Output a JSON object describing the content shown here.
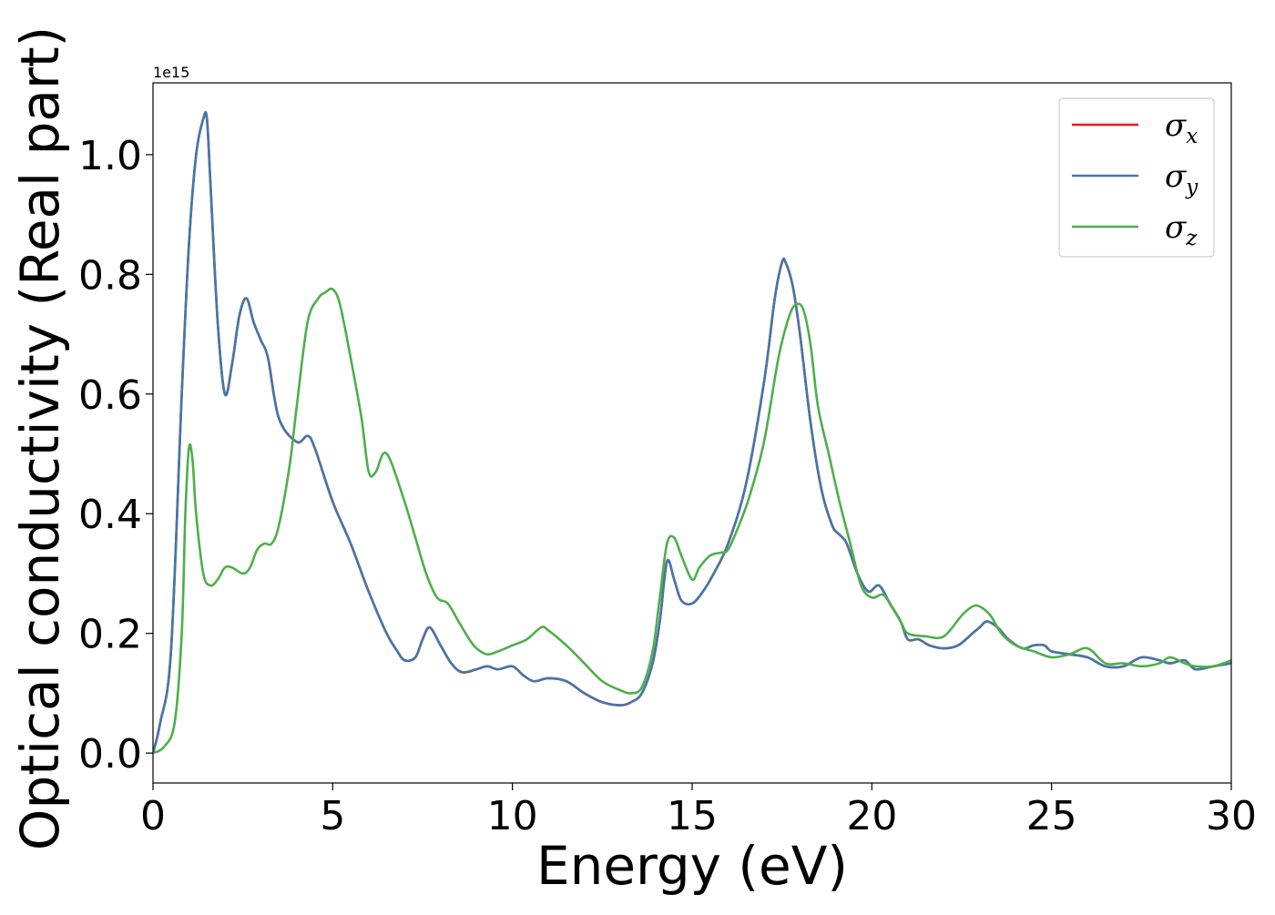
{
  "chart_data": {
    "type": "line",
    "xlabel": "Energy (eV)",
    "ylabel": "Optical conductivity (Real part)",
    "offset_text": "1e15",
    "xlim": [
      0,
      30
    ],
    "ylim": [
      -0.05,
      1.12
    ],
    "xticks": [
      0,
      5,
      10,
      15,
      20,
      25,
      30
    ],
    "xtick_labels": [
      "0",
      "5",
      "10",
      "15",
      "20",
      "25",
      "30"
    ],
    "yticks": [
      0.0,
      0.2,
      0.4,
      0.6,
      0.8,
      1.0
    ],
    "ytick_labels": [
      "0.0",
      "0.2",
      "0.4",
      "0.6",
      "0.8",
      "1.0"
    ],
    "grid": false,
    "legend_position": "upper-right",
    "series": [
      {
        "name": "σx",
        "symbol": "σ",
        "sub": "x",
        "color": "#e41a1c",
        "x": [
          0,
          0.2,
          0.5,
          0.8,
          1.0,
          1.2,
          1.4,
          1.5,
          1.6,
          1.8,
          2.0,
          2.2,
          2.4,
          2.6,
          2.8,
          3.0,
          3.2,
          3.5,
          4.0,
          4.3,
          4.5,
          5.0,
          5.5,
          6.0,
          6.5,
          6.8,
          7.0,
          7.3,
          7.5,
          7.7,
          8.0,
          8.3,
          8.6,
          9.0,
          9.3,
          9.6,
          10.0,
          10.3,
          10.6,
          11.0,
          11.5,
          12.0,
          12.5,
          13.0,
          13.3,
          13.6,
          13.9,
          14.1,
          14.3,
          14.5,
          14.7,
          15.0,
          15.3,
          15.6,
          16.0,
          16.5,
          17.0,
          17.3,
          17.5,
          17.6,
          17.8,
          18.0,
          18.3,
          18.6,
          18.9,
          19.1,
          19.3,
          19.6,
          19.9,
          20.2,
          20.5,
          20.8,
          21.0,
          21.3,
          21.6,
          22.0,
          22.4,
          22.8,
          23.0,
          23.2,
          23.5,
          23.8,
          24.2,
          24.5,
          24.8,
          25.0,
          25.5,
          26.0,
          26.5,
          27.0,
          27.5,
          28.0,
          28.3,
          28.7,
          29.0,
          29.5,
          30.0
        ],
        "y": [
          0.0,
          0.05,
          0.17,
          0.6,
          0.85,
          1.0,
          1.06,
          1.06,
          0.95,
          0.72,
          0.6,
          0.65,
          0.73,
          0.76,
          0.72,
          0.69,
          0.66,
          0.56,
          0.52,
          0.53,
          0.51,
          0.42,
          0.35,
          0.27,
          0.2,
          0.17,
          0.155,
          0.16,
          0.19,
          0.21,
          0.18,
          0.15,
          0.135,
          0.14,
          0.145,
          0.14,
          0.145,
          0.13,
          0.12,
          0.125,
          0.12,
          0.1,
          0.085,
          0.08,
          0.085,
          0.1,
          0.15,
          0.22,
          0.32,
          0.29,
          0.255,
          0.25,
          0.27,
          0.3,
          0.35,
          0.45,
          0.62,
          0.76,
          0.82,
          0.82,
          0.78,
          0.7,
          0.55,
          0.44,
          0.38,
          0.365,
          0.35,
          0.3,
          0.27,
          0.28,
          0.25,
          0.22,
          0.19,
          0.19,
          0.18,
          0.175,
          0.18,
          0.2,
          0.21,
          0.22,
          0.21,
          0.19,
          0.175,
          0.18,
          0.18,
          0.17,
          0.165,
          0.16,
          0.145,
          0.145,
          0.16,
          0.155,
          0.15,
          0.155,
          0.14,
          0.145,
          0.15
        ]
      },
      {
        "name": "σy",
        "symbol": "σ",
        "sub": "y",
        "color": "#4477aa",
        "x": [
          0,
          0.2,
          0.5,
          0.8,
          1.0,
          1.2,
          1.4,
          1.5,
          1.6,
          1.8,
          2.0,
          2.2,
          2.4,
          2.6,
          2.8,
          3.0,
          3.2,
          3.5,
          4.0,
          4.3,
          4.5,
          5.0,
          5.5,
          6.0,
          6.5,
          6.8,
          7.0,
          7.3,
          7.5,
          7.7,
          8.0,
          8.3,
          8.6,
          9.0,
          9.3,
          9.6,
          10.0,
          10.3,
          10.6,
          11.0,
          11.5,
          12.0,
          12.5,
          13.0,
          13.3,
          13.6,
          13.9,
          14.1,
          14.3,
          14.5,
          14.7,
          15.0,
          15.3,
          15.6,
          16.0,
          16.5,
          17.0,
          17.3,
          17.5,
          17.6,
          17.8,
          18.0,
          18.3,
          18.6,
          18.9,
          19.1,
          19.3,
          19.6,
          19.9,
          20.2,
          20.5,
          20.8,
          21.0,
          21.3,
          21.6,
          22.0,
          22.4,
          22.8,
          23.0,
          23.2,
          23.5,
          23.8,
          24.2,
          24.5,
          24.8,
          25.0,
          25.5,
          26.0,
          26.5,
          27.0,
          27.5,
          28.0,
          28.3,
          28.7,
          29.0,
          29.5,
          30.0
        ],
        "y": [
          0.0,
          0.05,
          0.17,
          0.6,
          0.85,
          1.0,
          1.06,
          1.06,
          0.95,
          0.72,
          0.6,
          0.65,
          0.73,
          0.76,
          0.72,
          0.69,
          0.66,
          0.56,
          0.52,
          0.53,
          0.51,
          0.42,
          0.35,
          0.27,
          0.2,
          0.17,
          0.155,
          0.16,
          0.19,
          0.21,
          0.18,
          0.15,
          0.135,
          0.14,
          0.145,
          0.14,
          0.145,
          0.13,
          0.12,
          0.125,
          0.12,
          0.1,
          0.085,
          0.08,
          0.085,
          0.1,
          0.15,
          0.22,
          0.32,
          0.29,
          0.255,
          0.25,
          0.27,
          0.3,
          0.35,
          0.45,
          0.62,
          0.76,
          0.82,
          0.82,
          0.78,
          0.7,
          0.55,
          0.44,
          0.38,
          0.365,
          0.35,
          0.3,
          0.27,
          0.28,
          0.25,
          0.22,
          0.19,
          0.19,
          0.18,
          0.175,
          0.18,
          0.2,
          0.21,
          0.22,
          0.21,
          0.19,
          0.175,
          0.18,
          0.18,
          0.17,
          0.165,
          0.16,
          0.145,
          0.145,
          0.16,
          0.155,
          0.15,
          0.155,
          0.14,
          0.145,
          0.15
        ]
      },
      {
        "name": "σz",
        "symbol": "σ",
        "sub": "z",
        "color": "#4daf4a",
        "x": [
          0,
          0.3,
          0.6,
          0.8,
          0.9,
          1.0,
          1.1,
          1.2,
          1.4,
          1.6,
          1.8,
          2.0,
          2.2,
          2.5,
          2.7,
          2.9,
          3.1,
          3.3,
          3.5,
          3.8,
          4.0,
          4.3,
          4.6,
          4.8,
          5.0,
          5.2,
          5.5,
          5.8,
          6.0,
          6.2,
          6.4,
          6.6,
          7.0,
          7.3,
          7.6,
          7.9,
          8.2,
          8.5,
          8.8,
          9.0,
          9.3,
          9.6,
          10.0,
          10.4,
          10.8,
          11.0,
          11.5,
          12.0,
          12.5,
          13.0,
          13.3,
          13.6,
          13.9,
          14.1,
          14.3,
          14.5,
          14.7,
          15.0,
          15.2,
          15.5,
          15.8,
          16.0,
          16.3,
          16.6,
          17.0,
          17.4,
          17.7,
          17.9,
          18.1,
          18.3,
          18.5,
          18.8,
          19.1,
          19.4,
          19.7,
          20.0,
          20.3,
          20.5,
          20.8,
          21.0,
          21.5,
          22.0,
          22.5,
          22.8,
          23.0,
          23.3,
          23.6,
          24.0,
          24.5,
          25.0,
          25.5,
          26.0,
          26.5,
          27.0,
          27.5,
          28.0,
          28.3,
          28.7,
          29.0,
          29.5,
          30.0
        ],
        "y": [
          0.0,
          0.01,
          0.05,
          0.2,
          0.4,
          0.51,
          0.49,
          0.4,
          0.3,
          0.28,
          0.29,
          0.31,
          0.31,
          0.3,
          0.31,
          0.34,
          0.35,
          0.35,
          0.38,
          0.48,
          0.58,
          0.72,
          0.76,
          0.77,
          0.775,
          0.75,
          0.66,
          0.56,
          0.47,
          0.47,
          0.5,
          0.49,
          0.42,
          0.36,
          0.3,
          0.26,
          0.25,
          0.22,
          0.19,
          0.175,
          0.165,
          0.17,
          0.18,
          0.19,
          0.21,
          0.205,
          0.18,
          0.15,
          0.12,
          0.105,
          0.1,
          0.11,
          0.17,
          0.26,
          0.35,
          0.36,
          0.33,
          0.29,
          0.31,
          0.33,
          0.335,
          0.34,
          0.38,
          0.43,
          0.52,
          0.66,
          0.73,
          0.75,
          0.74,
          0.68,
          0.58,
          0.5,
          0.42,
          0.35,
          0.28,
          0.26,
          0.265,
          0.25,
          0.22,
          0.2,
          0.195,
          0.195,
          0.23,
          0.245,
          0.245,
          0.23,
          0.2,
          0.18,
          0.17,
          0.16,
          0.165,
          0.175,
          0.15,
          0.15,
          0.145,
          0.15,
          0.16,
          0.15,
          0.145,
          0.145,
          0.155
        ]
      }
    ]
  }
}
